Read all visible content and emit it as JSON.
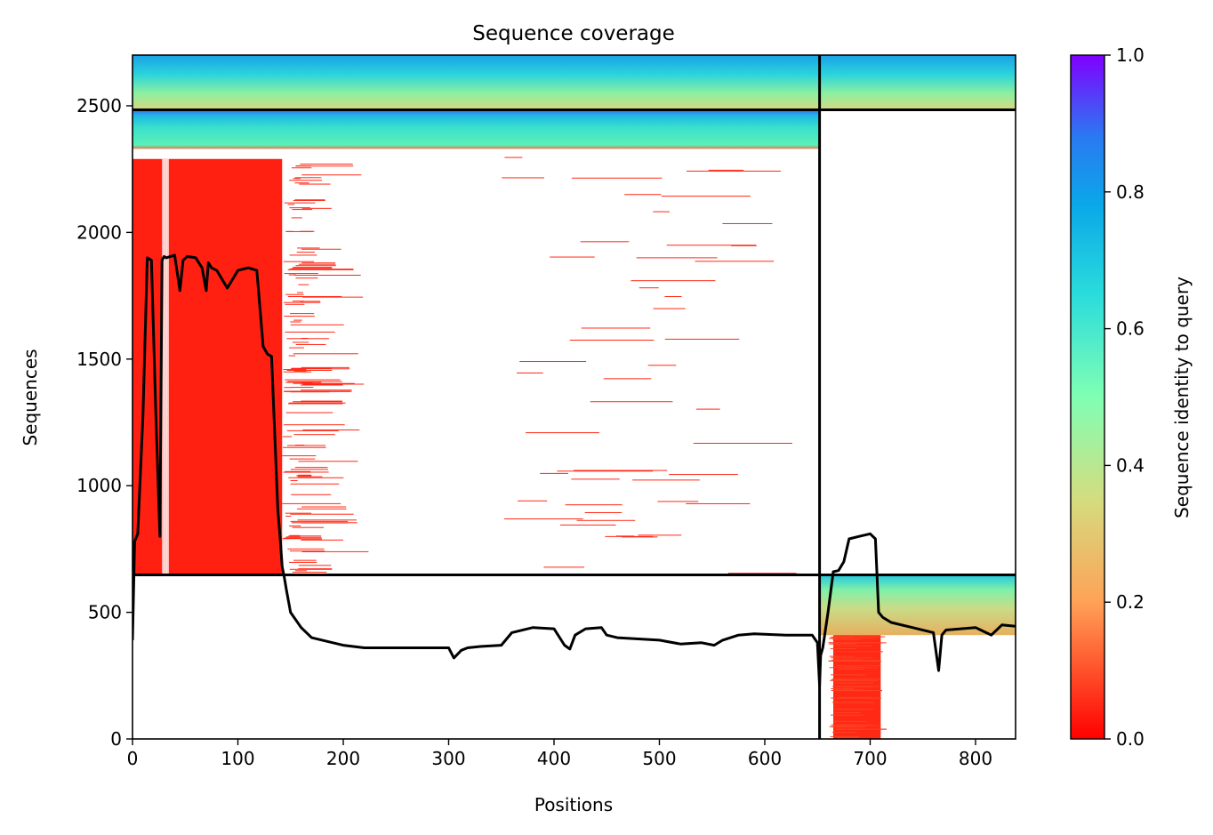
{
  "chart_data": {
    "type": "heatmap",
    "title": "Sequence coverage",
    "xlabel": "Positions",
    "ylabel": "Sequences",
    "xlim": [
      0,
      838
    ],
    "ylim": [
      0,
      2700
    ],
    "x_ticks": [
      0,
      100,
      200,
      300,
      400,
      500,
      600,
      700,
      800
    ],
    "y_ticks": [
      0,
      500,
      1000,
      1500,
      2000,
      2500
    ],
    "colorbar": {
      "label": "Sequence identity to query",
      "range": [
        0,
        1
      ],
      "ticks": [
        "0.0",
        "0.2",
        "0.4",
        "0.6",
        "0.8",
        "1.0"
      ],
      "colormap": "rainbow_r"
    },
    "segment_boundaries": {
      "x": [
        652
      ],
      "y": [
        648,
        2484
      ]
    },
    "coverage_blocks": [
      {
        "x0": 0,
        "x1": 652,
        "y0": 2484,
        "y1": 2700,
        "identity": 0.68
      },
      {
        "x0": 652,
        "x1": 838,
        "y0": 2484,
        "y1": 2700,
        "identity": 0.62
      },
      {
        "x0": 0,
        "x1": 652,
        "y0": 2330,
        "y1": 2484,
        "identity": 0.6
      },
      {
        "x0": 0,
        "x1": 142,
        "y0": 648,
        "y1": 2290,
        "identity": 0.04
      },
      {
        "x0": 652,
        "x1": 838,
        "y0": 410,
        "y1": 648,
        "identity": 0.45
      },
      {
        "x0": 665,
        "x1": 710,
        "y0": 0,
        "y1": 410,
        "identity": 0.05
      }
    ],
    "coverage_line": {
      "x": [
        0,
        2,
        5,
        10,
        14,
        18,
        22,
        26,
        28,
        30,
        32,
        36,
        40,
        45,
        48,
        52,
        60,
        66,
        70,
        72,
        75,
        80,
        90,
        100,
        110,
        118,
        124,
        128,
        132,
        134,
        138,
        140,
        142,
        144,
        146,
        150,
        160,
        170,
        180,
        200,
        220,
        260,
        300,
        305,
        312,
        318,
        330,
        350,
        360,
        380,
        400,
        410,
        415,
        420,
        430,
        445,
        450,
        460,
        500,
        520,
        540,
        552,
        560,
        575,
        590,
        620,
        645,
        650,
        652,
        653,
        655,
        660,
        665,
        670,
        675,
        680,
        690,
        700,
        705,
        708,
        712,
        720,
        740,
        760,
        765,
        768,
        772,
        800,
        810,
        815,
        825,
        838
      ],
      "y": [
        390,
        780,
        810,
        1280,
        1900,
        1890,
        1300,
        800,
        1890,
        1905,
        1900,
        1905,
        1910,
        1770,
        1890,
        1905,
        1900,
        1860,
        1770,
        1880,
        1860,
        1850,
        1780,
        1850,
        1860,
        1850,
        1550,
        1520,
        1510,
        1300,
        900,
        800,
        680,
        640,
        590,
        500,
        440,
        400,
        390,
        370,
        360,
        360,
        360,
        320,
        350,
        360,
        365,
        370,
        420,
        440,
        435,
        370,
        355,
        410,
        435,
        440,
        410,
        400,
        390,
        375,
        380,
        370,
        390,
        410,
        415,
        410,
        410,
        380,
        210,
        330,
        360,
        500,
        660,
        665,
        700,
        790,
        800,
        810,
        790,
        500,
        480,
        460,
        440,
        420,
        270,
        410,
        430,
        440,
        420,
        410,
        450,
        445
      ]
    }
  }
}
